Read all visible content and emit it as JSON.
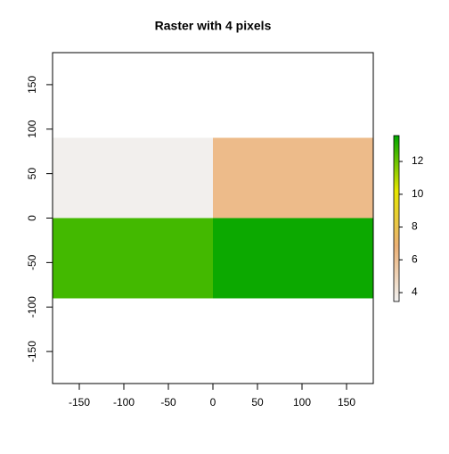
{
  "chart_data": {
    "type": "raster",
    "title": "Raster with 4 pixels",
    "x_edges": [
      -180,
      0,
      180
    ],
    "y_edges": [
      90,
      0,
      -90
    ],
    "values": [
      [
        3.6,
        6.3
      ],
      [
        12.6,
        13.4
      ]
    ],
    "xlim": [
      -180,
      180
    ],
    "ylim": [
      -186,
      186
    ],
    "xticks": [
      -150,
      -100,
      -50,
      0,
      50,
      100,
      150
    ],
    "yticks": [
      -150,
      -100,
      -50,
      0,
      50,
      100,
      150
    ],
    "colorscale": [
      "#F2F2F2",
      "#ECB176",
      "#E6E600",
      "#00A600"
    ],
    "clim": [
      3.46,
      13.58
    ],
    "cticks": [
      4,
      6,
      8,
      10,
      12
    ]
  }
}
